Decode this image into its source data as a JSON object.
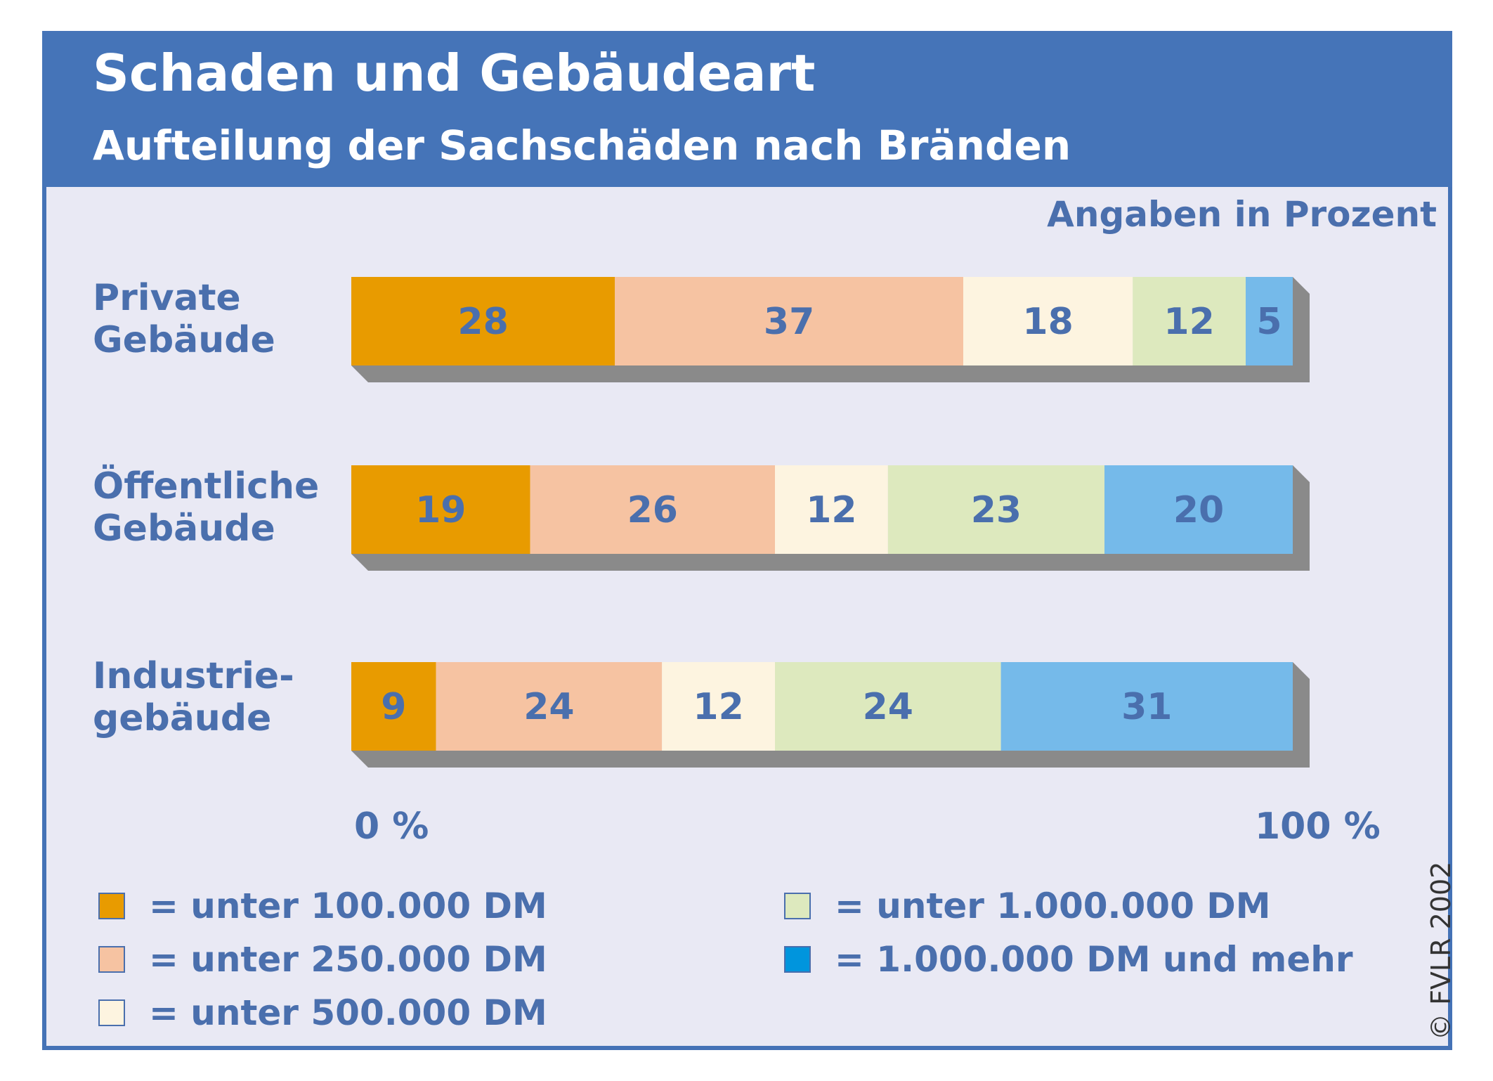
{
  "colors": {
    "c100k": "#e89b00",
    "c250k": "#f6c3a2",
    "c500k": "#fdf4e0",
    "c1m": "#dde9be",
    "cmore": "#75baea",
    "cmore_legend": "#0095dd",
    "shadow": "#8a8a8a",
    "label": "#4a6fad"
  },
  "chart_data": {
    "type": "bar",
    "title": "Schaden und Gebäudeart",
    "subtitle": "Aufteilung der Sachschäden nach Bränden",
    "unit_note": "Angaben in Prozent",
    "stacked": true,
    "orientation": "horizontal",
    "categories": [
      {
        "line1": "Private",
        "line2": "Gebäude"
      },
      {
        "line1": "Öffentliche",
        "line2": "Gebäude"
      },
      {
        "line1": "Industrie-",
        "line2": "gebäude"
      }
    ],
    "series": [
      {
        "name": "= unter 100.000 DM",
        "color_key": "c100k",
        "values": [
          28,
          19,
          9
        ]
      },
      {
        "name": "= unter 250.000 DM",
        "color_key": "c250k",
        "values": [
          37,
          26,
          24
        ]
      },
      {
        "name": "= unter 500.000 DM",
        "color_key": "c500k",
        "values": [
          18,
          12,
          12
        ]
      },
      {
        "name": "= unter 1.000.000 DM",
        "color_key": "c1m",
        "values": [
          12,
          23,
          24
        ]
      },
      {
        "name": "= 1.000.000 DM und mehr",
        "color_key": "cmore",
        "legend_color_key": "cmore_legend",
        "values": [
          5,
          20,
          31
        ]
      }
    ],
    "xlim": [
      0,
      100
    ],
    "axis_labels": {
      "min": "0 %",
      "max": "100 %"
    }
  },
  "copyright": "© FVLR 2002"
}
